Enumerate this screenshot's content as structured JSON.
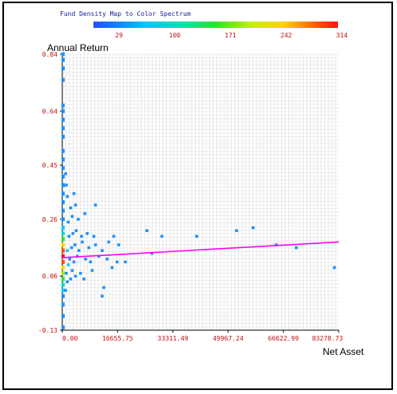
{
  "chart_data": {
    "type": "scatter",
    "legend_title": "Fund Density Map to Color Spectrum",
    "color_scale": {
      "ticks": [
        "29",
        "100",
        "171",
        "242",
        "314"
      ],
      "values": [
        29,
        100,
        171,
        242,
        314
      ],
      "colors": [
        "#1e50ff",
        "#00c8ff",
        "#28e628",
        "#ffd000",
        "#ff1010"
      ]
    },
    "xlabel": "Net Asset",
    "ylabel": "Annual Return",
    "x_ticks": [
      "0.00",
      "16655.75",
      "33311.49",
      "49967.24",
      "66622.99",
      "83278.73"
    ],
    "y_ticks": [
      "-0.13",
      "0.06",
      "0.26",
      "0.45",
      "0.64",
      "0.84"
    ],
    "xlim": [
      0,
      83278.73
    ],
    "ylim": [
      -0.13,
      0.84
    ],
    "grid": true,
    "trend_line": {
      "x": [
        0,
        83278.73
      ],
      "y": [
        0.125,
        0.18
      ],
      "color": "#ff00ff"
    },
    "points": [
      {
        "x": 1000,
        "y": 0.01,
        "c": "#1e90ff"
      },
      {
        "x": 1500,
        "y": 0.04,
        "c": "#1e90ff"
      },
      {
        "x": 1200,
        "y": 0.07,
        "c": "#1e90ff"
      },
      {
        "x": 2500,
        "y": 0.05,
        "c": "#1e90ff"
      },
      {
        "x": 3000,
        "y": 0.08,
        "c": "#1e90ff"
      },
      {
        "x": 4000,
        "y": 0.06,
        "c": "#1e90ff"
      },
      {
        "x": 5500,
        "y": 0.07,
        "c": "#1e90ff"
      },
      {
        "x": 6500,
        "y": 0.05,
        "c": "#1e90ff"
      },
      {
        "x": 9000,
        "y": 0.08,
        "c": "#1e90ff"
      },
      {
        "x": 12500,
        "y": 0.02,
        "c": "#1e90ff"
      },
      {
        "x": 15000,
        "y": 0.09,
        "c": "#1e90ff"
      },
      {
        "x": 1800,
        "y": 0.1,
        "c": "#00c8ff"
      },
      {
        "x": 2200,
        "y": 0.12,
        "c": "#1e90ff"
      },
      {
        "x": 3500,
        "y": 0.11,
        "c": "#1e90ff"
      },
      {
        "x": 4500,
        "y": 0.13,
        "c": "#1e90ff"
      },
      {
        "x": 7000,
        "y": 0.12,
        "c": "#1e90ff"
      },
      {
        "x": 8500,
        "y": 0.11,
        "c": "#1e90ff"
      },
      {
        "x": 11000,
        "y": 0.13,
        "c": "#1e90ff"
      },
      {
        "x": 13500,
        "y": 0.12,
        "c": "#1e90ff"
      },
      {
        "x": 16500,
        "y": 0.11,
        "c": "#1e90ff"
      },
      {
        "x": 19000,
        "y": 0.11,
        "c": "#1e90ff"
      },
      {
        "x": 27000,
        "y": 0.14,
        "c": "#1e90ff"
      },
      {
        "x": 1500,
        "y": 0.15,
        "c": "#00c8ff"
      },
      {
        "x": 2800,
        "y": 0.16,
        "c": "#1e90ff"
      },
      {
        "x": 3800,
        "y": 0.17,
        "c": "#1e90ff"
      },
      {
        "x": 5000,
        "y": 0.15,
        "c": "#1e90ff"
      },
      {
        "x": 6000,
        "y": 0.18,
        "c": "#1e90ff"
      },
      {
        "x": 8000,
        "y": 0.16,
        "c": "#1e90ff"
      },
      {
        "x": 10000,
        "y": 0.17,
        "c": "#1e90ff"
      },
      {
        "x": 12000,
        "y": 0.15,
        "c": "#1e90ff"
      },
      {
        "x": 14000,
        "y": 0.18,
        "c": "#1e90ff"
      },
      {
        "x": 17000,
        "y": 0.17,
        "c": "#1e90ff"
      },
      {
        "x": 2000,
        "y": 0.2,
        "c": "#1e90ff"
      },
      {
        "x": 3200,
        "y": 0.21,
        "c": "#1e90ff"
      },
      {
        "x": 4200,
        "y": 0.22,
        "c": "#1e90ff"
      },
      {
        "x": 5800,
        "y": 0.2,
        "c": "#1e90ff"
      },
      {
        "x": 7500,
        "y": 0.21,
        "c": "#1e90ff"
      },
      {
        "x": 9500,
        "y": 0.2,
        "c": "#1e90ff"
      },
      {
        "x": 15500,
        "y": 0.2,
        "c": "#1e90ff"
      },
      {
        "x": 25500,
        "y": 0.22,
        "c": "#1e90ff"
      },
      {
        "x": 30000,
        "y": 0.2,
        "c": "#1e90ff"
      },
      {
        "x": 40500,
        "y": 0.2,
        "c": "#1e90ff"
      },
      {
        "x": 52500,
        "y": 0.22,
        "c": "#1e90ff"
      },
      {
        "x": 57500,
        "y": 0.23,
        "c": "#1e90ff"
      },
      {
        "x": 64500,
        "y": 0.17,
        "c": "#1e90ff"
      },
      {
        "x": 70500,
        "y": 0.16,
        "c": "#1e90ff"
      },
      {
        "x": 82000,
        "y": 0.09,
        "c": "#1e90ff"
      },
      {
        "x": 1800,
        "y": 0.25,
        "c": "#1e90ff"
      },
      {
        "x": 3000,
        "y": 0.27,
        "c": "#1e90ff"
      },
      {
        "x": 4800,
        "y": 0.26,
        "c": "#1e90ff"
      },
      {
        "x": 6800,
        "y": 0.28,
        "c": "#1e90ff"
      },
      {
        "x": 2500,
        "y": 0.3,
        "c": "#1e90ff"
      },
      {
        "x": 4000,
        "y": 0.31,
        "c": "#1e90ff"
      },
      {
        "x": 10000,
        "y": 0.31,
        "c": "#1e90ff"
      },
      {
        "x": 1500,
        "y": 0.34,
        "c": "#1e90ff"
      },
      {
        "x": 3500,
        "y": 0.35,
        "c": "#1e90ff"
      },
      {
        "x": 1200,
        "y": 0.38,
        "c": "#1e90ff"
      },
      {
        "x": 1000,
        "y": 0.42,
        "c": "#1e90ff"
      },
      {
        "x": 12000,
        "y": -0.01,
        "c": "#1e90ff"
      }
    ],
    "density_strip": {
      "x": 0,
      "y_start": -0.12,
      "y_end": 0.84,
      "cells": [
        {
          "y": -0.12,
          "c": "#1e90ff"
        },
        {
          "y": -0.08,
          "c": "#1e90ff"
        },
        {
          "y": -0.04,
          "c": "#1e90ff"
        },
        {
          "y": -0.01,
          "c": "#1e90ff"
        },
        {
          "y": 0.01,
          "c": "#00d0ff"
        },
        {
          "y": 0.03,
          "c": "#00e0c0"
        },
        {
          "y": 0.05,
          "c": "#28e628"
        },
        {
          "y": 0.07,
          "c": "#a0f000"
        },
        {
          "y": 0.09,
          "c": "#ffd000"
        },
        {
          "y": 0.11,
          "c": "#ff5000"
        },
        {
          "y": 0.13,
          "c": "#ff1010"
        },
        {
          "y": 0.15,
          "c": "#ff5000"
        },
        {
          "y": 0.17,
          "c": "#ffd000"
        },
        {
          "y": 0.19,
          "c": "#28e628"
        },
        {
          "y": 0.21,
          "c": "#00e0c0"
        },
        {
          "y": 0.23,
          "c": "#00c8ff"
        },
        {
          "y": 0.26,
          "c": "#1e90ff"
        },
        {
          "y": 0.29,
          "c": "#1e90ff"
        },
        {
          "y": 0.32,
          "c": "#1e90ff"
        },
        {
          "y": 0.35,
          "c": "#1e90ff"
        },
        {
          "y": 0.38,
          "c": "#1e90ff"
        },
        {
          "y": 0.41,
          "c": "#1e90ff"
        },
        {
          "y": 0.44,
          "c": "#1e90ff"
        },
        {
          "y": 0.47,
          "c": "#1e90ff"
        },
        {
          "y": 0.5,
          "c": "#1e90ff"
        },
        {
          "y": 0.55,
          "c": "#1e90ff"
        },
        {
          "y": 0.58,
          "c": "#1e90ff"
        },
        {
          "y": 0.61,
          "c": "#1e90ff"
        },
        {
          "y": 0.64,
          "c": "#1e90ff"
        },
        {
          "y": 0.66,
          "c": "#1e90ff"
        },
        {
          "y": 0.75,
          "c": "#1e90ff"
        },
        {
          "y": 0.79,
          "c": "#1e90ff"
        },
        {
          "y": 0.82,
          "c": "#1e90ff"
        },
        {
          "y": 0.84,
          "c": "#1e90ff"
        }
      ]
    }
  }
}
